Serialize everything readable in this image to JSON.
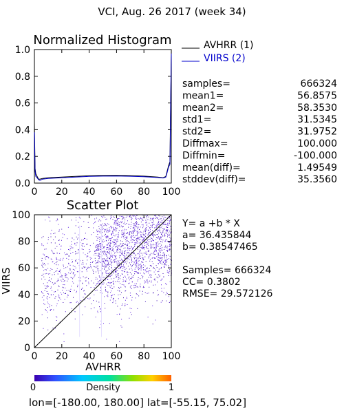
{
  "page_title": "VCI,  Aug. 26 2017 (week 34)",
  "footer": "lon=[-180.00, 180.00] lat=[-55.15, 75.02]",
  "colors": {
    "avhrr": "#000000",
    "viirs": "#0000cc",
    "density_low": "#3a00b0",
    "density_mid": "#00c8ff",
    "density_high": "#ff8000"
  },
  "chart_data": [
    {
      "type": "line",
      "title": "Normalized Histogram",
      "xlim": [
        0,
        100
      ],
      "ylim": [
        0,
        1.0
      ],
      "x_ticks": [
        "0",
        "20",
        "40",
        "60",
        "80",
        "100"
      ],
      "y_ticks": [
        "0.0",
        "0.2",
        "0.4",
        "0.6",
        "0.8",
        "1.0"
      ],
      "legend": [
        {
          "label": "AVHRR (1)",
          "color": "#000000"
        },
        {
          "label": "VIIRS (2)",
          "color": "#0000cc"
        }
      ],
      "series": [
        {
          "name": "AVHRR (1)",
          "x": [
            0,
            0.5,
            1,
            2,
            3,
            4,
            6,
            10,
            20,
            30,
            40,
            50,
            60,
            70,
            80,
            90,
            94,
            96,
            97,
            98,
            99,
            99.5,
            100
          ],
          "y": [
            0.45,
            0.11,
            0.07,
            0.05,
            0.03,
            0.03,
            0.035,
            0.04,
            0.045,
            0.05,
            0.055,
            0.057,
            0.058,
            0.056,
            0.052,
            0.045,
            0.04,
            0.05,
            0.09,
            0.13,
            0.16,
            0.6,
            1.0
          ]
        },
        {
          "name": "VIIRS (2)",
          "x": [
            0,
            0.5,
            1,
            2,
            3,
            4,
            6,
            10,
            20,
            30,
            40,
            50,
            60,
            70,
            80,
            90,
            94,
            96,
            97,
            98,
            99,
            99.5,
            100
          ],
          "y": [
            0.38,
            0.09,
            0.05,
            0.04,
            0.025,
            0.02,
            0.03,
            0.035,
            0.04,
            0.045,
            0.05,
            0.052,
            0.053,
            0.051,
            0.048,
            0.042,
            0.038,
            0.045,
            0.08,
            0.12,
            0.14,
            0.55,
            0.97
          ]
        }
      ],
      "stats": [
        {
          "label": "samples=",
          "value": "666324"
        },
        {
          "label": "mean1=",
          "value": "56.8575"
        },
        {
          "label": "mean2=",
          "value": "58.3530"
        },
        {
          "label": "std1=",
          "value": "31.5345"
        },
        {
          "label": "std2=",
          "value": "31.9752"
        },
        {
          "label": "Diffmax=",
          "value": "100.000"
        },
        {
          "label": "Diffmin=",
          "value": "-100.000"
        },
        {
          "label": "mean(diff)=",
          "value": "1.49549"
        },
        {
          "label": "stddev(diff)=",
          "value": "35.3560"
        }
      ]
    },
    {
      "type": "scatter",
      "title": "Scatter Plot",
      "xlabel": "AVHRR",
      "ylabel": "VIIRS",
      "xlim": [
        0,
        100
      ],
      "ylim": [
        0,
        100
      ],
      "x_ticks": [
        "0",
        "20",
        "40",
        "60",
        "80",
        "100"
      ],
      "y_ticks": [
        "0",
        "20",
        "40",
        "60",
        "80",
        "100"
      ],
      "regression": {
        "a": 36.435844,
        "b": 0.38547465
      },
      "annotations": [
        "Y= a +b * X",
        "a= 36.435844",
        "b= 0.38547465",
        "Samples= 666324",
        "CC=  0.3802",
        "RMSE= 29.572126"
      ],
      "colorbar": {
        "label": "Density",
        "min_label": "0",
        "max_label": "1"
      }
    }
  ]
}
